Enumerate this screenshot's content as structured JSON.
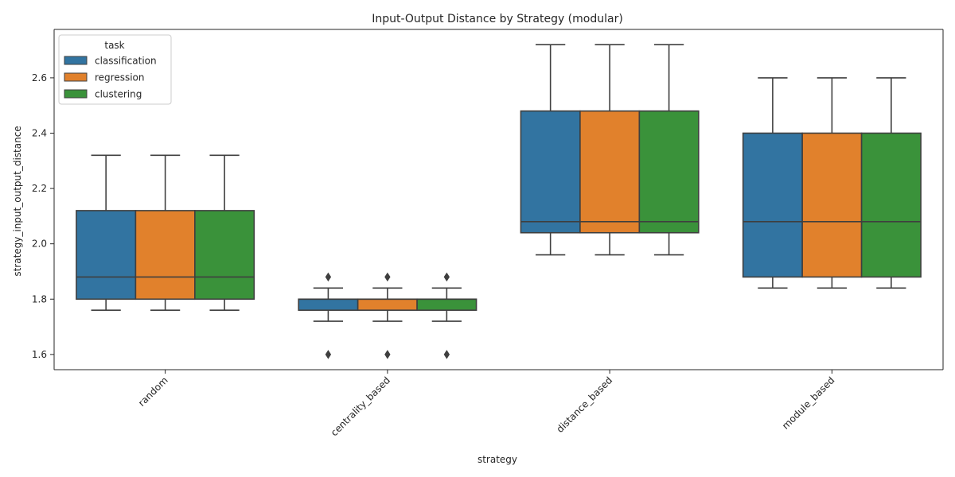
{
  "chart_data": {
    "type": "box",
    "title": "Input-Output Distance by Strategy (modular)",
    "xlabel": "strategy",
    "ylabel": "strategy_input_output_distance",
    "ylim": [
      1.545,
      2.775
    ],
    "yticks": [
      "1.6",
      "1.8",
      "2.0",
      "2.2",
      "2.4",
      "2.6"
    ],
    "categories": [
      "random",
      "centrality_based",
      "distance_based",
      "module_based"
    ],
    "legend": {
      "title": "task",
      "position": "top-left"
    },
    "series": [
      {
        "name": "classification",
        "color": "#3274a1",
        "boxes": [
          {
            "whisker_low": 1.76,
            "q1": 1.8,
            "median": 1.88,
            "q3": 2.12,
            "whisker_high": 2.32,
            "outliers": []
          },
          {
            "whisker_low": 1.72,
            "q1": 1.76,
            "median": 1.8,
            "q3": 1.8,
            "whisker_high": 1.84,
            "outliers": [
              1.88,
              1.6
            ]
          },
          {
            "whisker_low": 1.96,
            "q1": 2.04,
            "median": 2.08,
            "q3": 2.48,
            "whisker_high": 2.72,
            "outliers": []
          },
          {
            "whisker_low": 1.84,
            "q1": 1.88,
            "median": 2.08,
            "q3": 2.4,
            "whisker_high": 2.6,
            "outliers": []
          }
        ]
      },
      {
        "name": "regression",
        "color": "#e1812c",
        "boxes": [
          {
            "whisker_low": 1.76,
            "q1": 1.8,
            "median": 1.88,
            "q3": 2.12,
            "whisker_high": 2.32,
            "outliers": []
          },
          {
            "whisker_low": 1.72,
            "q1": 1.76,
            "median": 1.8,
            "q3": 1.8,
            "whisker_high": 1.84,
            "outliers": [
              1.88,
              1.6
            ]
          },
          {
            "whisker_low": 1.96,
            "q1": 2.04,
            "median": 2.08,
            "q3": 2.48,
            "whisker_high": 2.72,
            "outliers": []
          },
          {
            "whisker_low": 1.84,
            "q1": 1.88,
            "median": 2.08,
            "q3": 2.4,
            "whisker_high": 2.6,
            "outliers": []
          }
        ]
      },
      {
        "name": "clustering",
        "color": "#3a923a",
        "boxes": [
          {
            "whisker_low": 1.76,
            "q1": 1.8,
            "median": 1.88,
            "q3": 2.12,
            "whisker_high": 2.32,
            "outliers": []
          },
          {
            "whisker_low": 1.72,
            "q1": 1.76,
            "median": 1.8,
            "q3": 1.8,
            "whisker_high": 1.84,
            "outliers": [
              1.88,
              1.6
            ]
          },
          {
            "whisker_low": 1.96,
            "q1": 2.04,
            "median": 2.08,
            "q3": 2.48,
            "whisker_high": 2.72,
            "outliers": []
          },
          {
            "whisker_low": 1.84,
            "q1": 1.88,
            "median": 2.08,
            "q3": 2.4,
            "whisker_high": 2.6,
            "outliers": []
          }
        ]
      }
    ]
  }
}
